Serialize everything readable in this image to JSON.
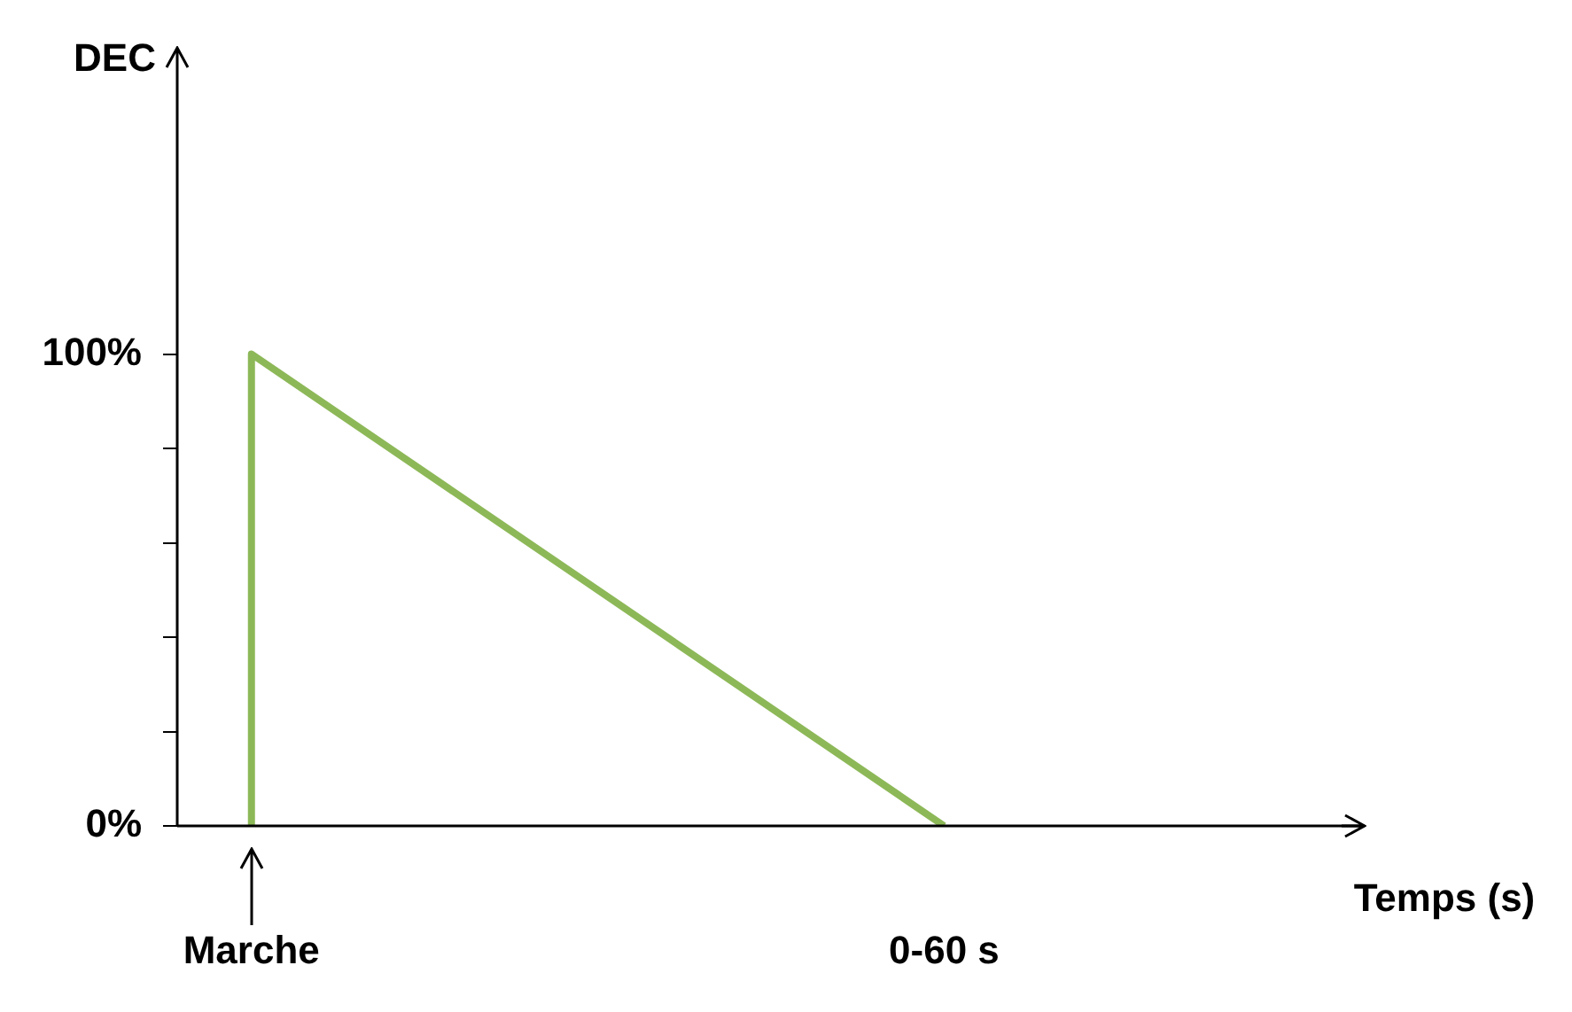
{
  "chart_data": {
    "type": "line",
    "xlabel": "Temps (s)",
    "ylabel": "DEC",
    "categories": [
      null,
      "Marche",
      null,
      null,
      null,
      null,
      null,
      null,
      null,
      null,
      null,
      null,
      null,
      null,
      null,
      "0-60 s",
      null,
      null,
      null,
      null,
      null,
      null,
      null,
      null
    ],
    "series": [
      {
        "color": "#8db858",
        "x": [
          "Marche",
          "Marche",
          "0-60 s"
        ],
        "values": [
          0,
          100,
          0
        ]
      }
    ],
    "ylim": [
      0,
      160
    ],
    "yticks": [
      {
        "value": 0,
        "label": "0%"
      },
      {
        "value": 20,
        "label": null
      },
      {
        "value": 40,
        "label": null
      },
      {
        "value": 60,
        "label": null
      },
      {
        "value": 80,
        "label": null
      },
      {
        "value": 100,
        "label": "100%"
      }
    ],
    "grid": false,
    "legend": false,
    "marker": "none"
  }
}
